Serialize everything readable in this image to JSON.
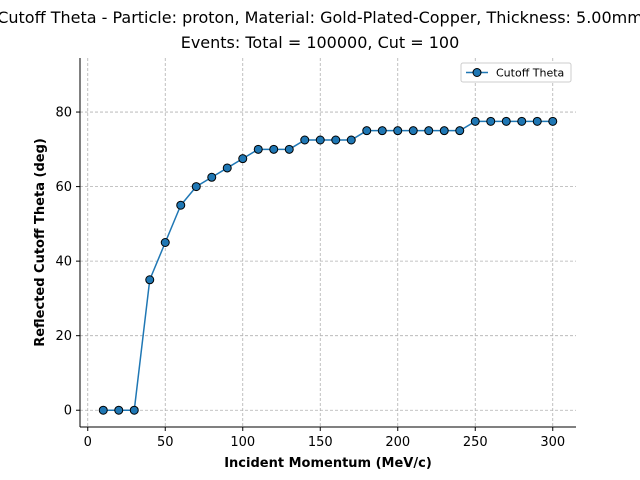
{
  "chart_data": {
    "type": "line",
    "title": "Cutoff Theta - Particle: proton, Material: Gold-Plated-Copper, Thickness: 5.00mm",
    "subtitle": "Events: Total = 100000, Cut = 100",
    "xlabel": "Incident Momentum (MeV/c)",
    "ylabel": "Reflected Cutoff Theta (deg)",
    "xlim": [
      -5,
      315
    ],
    "ylim": [
      -4.5,
      94.5
    ],
    "xticks": [
      0,
      50,
      100,
      150,
      200,
      250,
      300
    ],
    "yticks": [
      0,
      20,
      40,
      60,
      80
    ],
    "grid": true,
    "legend_position": "upper right",
    "series": [
      {
        "name": "Cutoff Theta",
        "color": "#1f77b4",
        "marker": "circle",
        "x": [
          10,
          20,
          30,
          40,
          50,
          60,
          70,
          80,
          90,
          100,
          110,
          120,
          130,
          140,
          150,
          160,
          170,
          180,
          190,
          200,
          210,
          220,
          230,
          240,
          250,
          260,
          270,
          280,
          290,
          300
        ],
        "y": [
          0,
          0,
          0,
          35,
          45,
          55,
          60,
          62.5,
          65,
          67.5,
          70,
          70,
          70,
          72.5,
          72.5,
          72.5,
          72.5,
          75,
          75,
          75,
          75,
          75,
          75,
          75,
          77.5,
          77.5,
          77.5,
          77.5,
          77.5,
          77.5
        ]
      }
    ]
  }
}
